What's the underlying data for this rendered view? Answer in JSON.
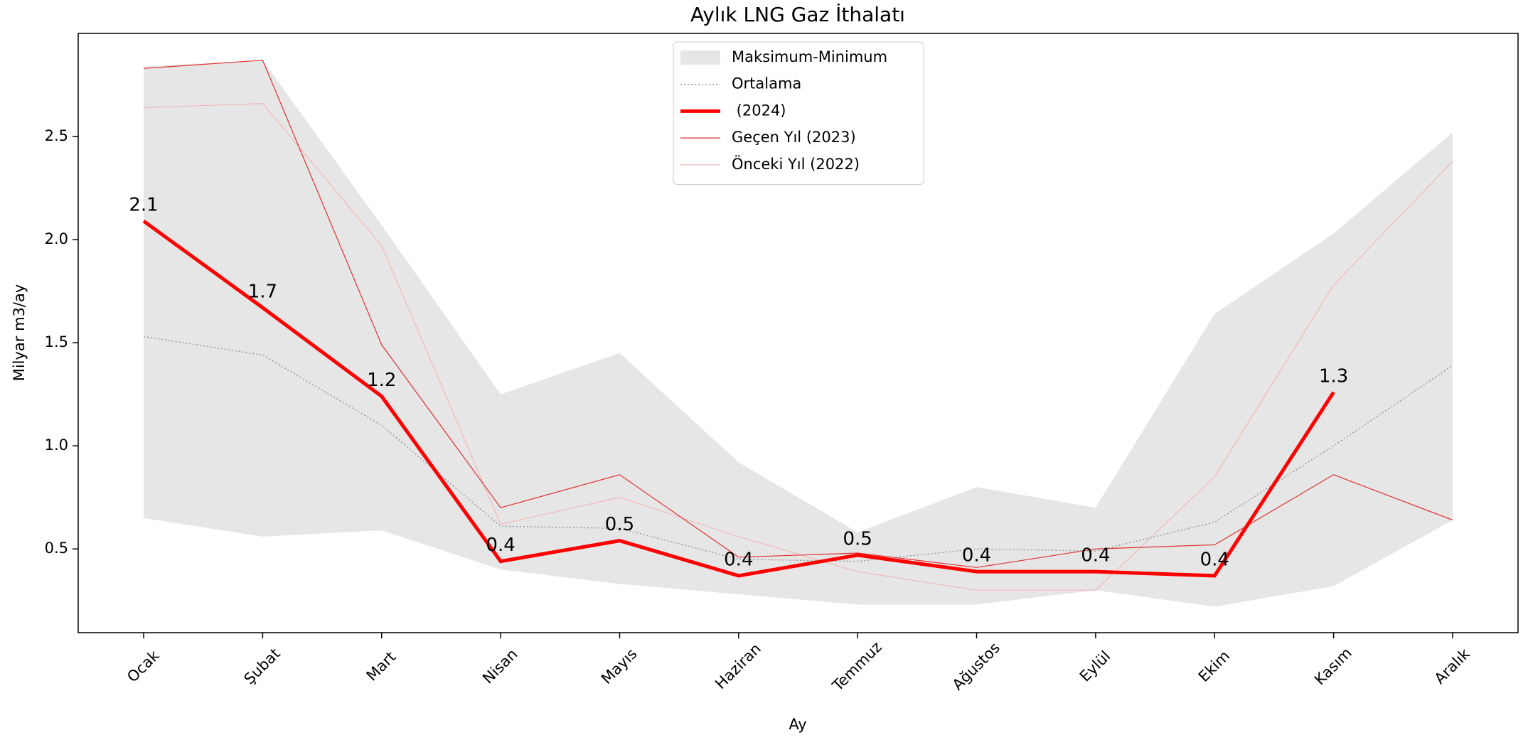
{
  "chart_data": {
    "type": "line",
    "title": "Aylık LNG Gaz İthalatı",
    "xlabel": "Ay",
    "ylabel": "Milyar m3/ay",
    "categories": [
      "Ocak",
      "Şubat",
      "Mart",
      "Nisan",
      "Mayıs",
      "Haziran",
      "Temmuz",
      "Ağustos",
      "Eylül",
      "Ekim",
      "Kasım",
      "Aralık"
    ],
    "band": {
      "name": "Maksimum-Minimum",
      "color": "#e6e6e6",
      "upper": [
        2.84,
        2.87,
        2.07,
        1.25,
        1.45,
        0.92,
        0.58,
        0.8,
        0.7,
        1.64,
        2.03,
        2.52
      ],
      "lower": [
        0.65,
        0.56,
        0.59,
        0.4,
        0.33,
        0.28,
        0.23,
        0.23,
        0.3,
        0.22,
        0.32,
        0.64
      ]
    },
    "series": [
      {
        "name": "Ortalama",
        "color": "#999999",
        "values": [
          1.53,
          1.44,
          1.1,
          0.61,
          0.6,
          0.45,
          0.44,
          0.5,
          0.49,
          0.63,
          1.0,
          1.39
        ]
      },
      {
        "name": " (2024)",
        "color": "#ff0000",
        "values": [
          2.09,
          1.67,
          1.24,
          0.44,
          0.54,
          0.37,
          0.47,
          0.39,
          0.39,
          0.37,
          1.26,
          null
        ],
        "value_labels": [
          "2.1",
          "1.7",
          "1.2",
          "0.4",
          "0.5",
          "0.4",
          "0.5",
          "0.4",
          "0.4",
          "0.4",
          "1.3",
          null
        ]
      },
      {
        "name": "Geçen Yıl (2023)",
        "color": "#e03030",
        "values": [
          2.83,
          2.87,
          1.49,
          0.7,
          0.86,
          0.46,
          0.48,
          0.41,
          0.5,
          0.52,
          0.86,
          0.64
        ]
      },
      {
        "name": "Önceki Yıl (2022)",
        "color": "#f4b0b0",
        "values": [
          2.64,
          2.66,
          1.97,
          0.62,
          0.75,
          0.56,
          0.39,
          0.3,
          0.3,
          0.85,
          1.78,
          2.38
        ]
      }
    ],
    "ylim": [
      0.094,
      3.0
    ],
    "yticks": [
      0.5,
      {
        "value": 1,
        "label": "1.0"
      },
      1.5,
      {
        "value": 2,
        "label": "2.0"
      },
      2.5
    ],
    "legend": "upper center"
  }
}
